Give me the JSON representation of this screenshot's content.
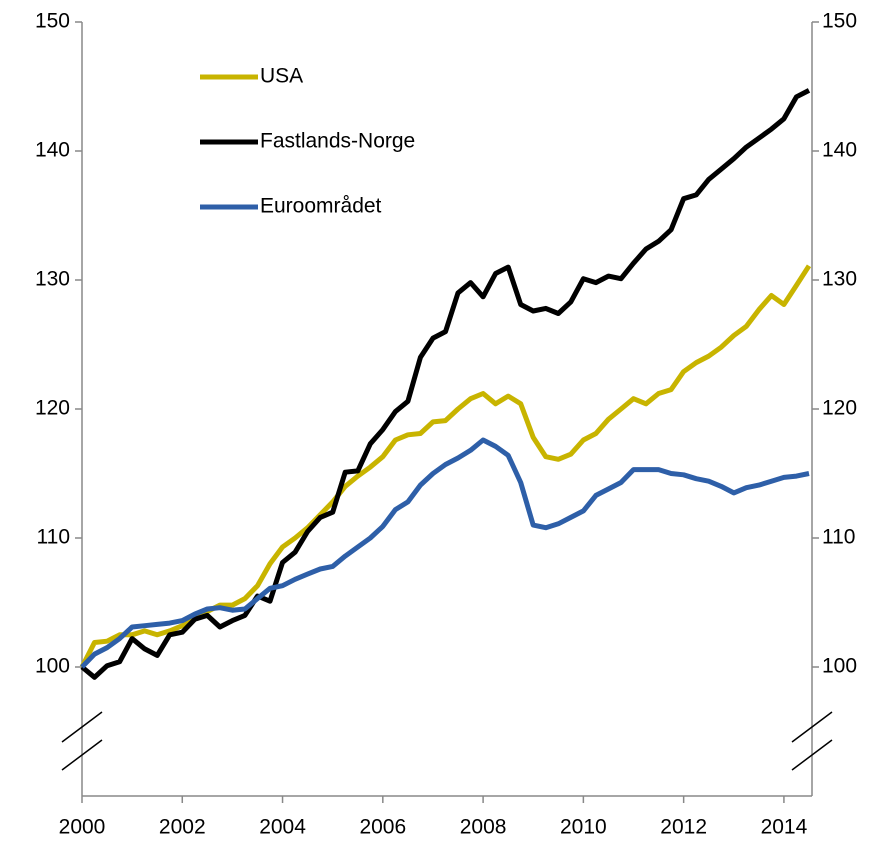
{
  "chart_data": {
    "type": "line",
    "x": [
      2000,
      2000.25,
      2000.5,
      2000.75,
      2001,
      2001.25,
      2001.5,
      2001.75,
      2002,
      2002.25,
      2002.5,
      2002.75,
      2003,
      2003.25,
      2003.5,
      2003.75,
      2004,
      2004.25,
      2004.5,
      2004.75,
      2005,
      2005.25,
      2005.5,
      2005.75,
      2006,
      2006.25,
      2006.5,
      2006.75,
      2007,
      2007.25,
      2007.5,
      2007.75,
      2008,
      2008.25,
      2008.5,
      2008.75,
      2009,
      2009.25,
      2009.5,
      2009.75,
      2010,
      2010.25,
      2010.5,
      2010.75,
      2011,
      2011.25,
      2011.5,
      2011.75,
      2012,
      2012.25,
      2012.5,
      2012.75,
      2013,
      2013.25,
      2013.5,
      2013.75,
      2014,
      2014.25,
      2014.5
    ],
    "series": [
      {
        "name": "USA",
        "color": "#c8b400",
        "values": [
          100,
          101.9,
          102,
          102.5,
          102.5,
          102.8,
          102.5,
          102.8,
          103.2,
          103.8,
          104.3,
          104.8,
          104.8,
          105.3,
          106.3,
          108,
          109.3,
          110,
          110.8,
          111.8,
          112.8,
          114,
          114.8,
          115.5,
          116.3,
          117.6,
          118,
          118.1,
          119,
          119.1,
          120,
          120.8,
          121.2,
          120.4,
          121,
          120.4,
          117.8,
          116.3,
          116.1,
          116.5,
          117.6,
          118.1,
          119.2,
          120,
          120.8,
          120.4,
          121.2,
          121.5,
          122.9,
          123.6,
          124.1,
          124.8,
          125.7,
          126.4,
          127.7,
          128.8,
          128.1,
          129.6,
          131.1
        ]
      },
      {
        "name": "Fastlands-Norge",
        "color": "#000000",
        "values": [
          100,
          99.2,
          100.1,
          100.4,
          102.2,
          101.4,
          100.9,
          102.5,
          102.7,
          103.7,
          104,
          103.1,
          103.6,
          104,
          105.5,
          105.1,
          108.1,
          108.9,
          110.5,
          111.6,
          112,
          115.1,
          115.2,
          117.3,
          118.4,
          119.8,
          120.6,
          124,
          125.5,
          126,
          129,
          129.8,
          128.7,
          130.5,
          131,
          128.1,
          127.6,
          127.8,
          127.4,
          128.3,
          130.1,
          129.8,
          130.3,
          130.1,
          131.3,
          132.4,
          133,
          133.9,
          136.3,
          136.6,
          137.8,
          138.6,
          139.4,
          140.3,
          141,
          141.7,
          142.5,
          144.2,
          144.7
        ]
      },
      {
        "name": "Euroområdet",
        "color": "#2e5fa8",
        "values": [
          100,
          101,
          101.5,
          102.2,
          103.1,
          103.2,
          103.3,
          103.4,
          103.6,
          104.1,
          104.5,
          104.6,
          104.4,
          104.5,
          105.3,
          106.1,
          106.3,
          106.8,
          107.2,
          107.6,
          107.8,
          108.6,
          109.3,
          110,
          110.9,
          112.2,
          112.8,
          114.1,
          115,
          115.7,
          116.2,
          116.8,
          117.6,
          117.1,
          116.4,
          114.3,
          111,
          110.8,
          111.1,
          111.6,
          112.1,
          113.3,
          113.8,
          114.3,
          115.3,
          115.3,
          115.3,
          115,
          114.9,
          114.6,
          114.4,
          114,
          113.5,
          113.9,
          114.1,
          114.4,
          114.7,
          114.8,
          115
        ]
      }
    ],
    "xlim": [
      2000,
      2014.56
    ],
    "xticks": [
      2000,
      2002,
      2004,
      2006,
      2008,
      2010,
      2012,
      2014
    ],
    "ylim": [
      90,
      150
    ],
    "yticks": [
      100,
      110,
      120,
      130,
      140,
      150
    ],
    "y2lim": [
      90,
      150
    ],
    "y2ticks": [
      100,
      110,
      120,
      130,
      140,
      150
    ],
    "grid": false,
    "legend": "upper-left"
  }
}
